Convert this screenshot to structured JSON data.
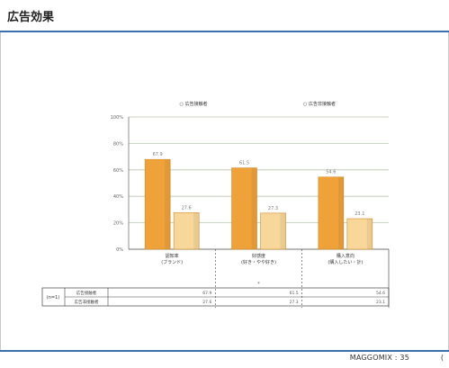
{
  "page": {
    "title": "広告効果",
    "footer": "MAGGOMIX : 35",
    "footer_edge": "("
  },
  "chart_data": {
    "type": "bar",
    "legend": [
      "広告接触者",
      "広告非接触者"
    ],
    "categories": [
      {
        "line1": "認知率",
        "line2": "(ブランド)"
      },
      {
        "line1": "好感度",
        "line2": "(好き・やや好き)"
      },
      {
        "line1": "購入意向",
        "line2": "(購入したい・計)"
      }
    ],
    "series": [
      {
        "name": "広告接触者",
        "color": "#f0a23a",
        "values": [
          67.9,
          61.5,
          54.6
        ]
      },
      {
        "name": "広告非接触者",
        "color": "#f8d79a",
        "values": [
          27.6,
          27.3,
          23.1
        ]
      }
    ],
    "ylim": [
      0,
      100
    ],
    "yticks": [
      "100%",
      "80%",
      "60%",
      "40%",
      "20%",
      "0%"
    ],
    "grid": true,
    "table": {
      "header": "(n=1)",
      "rows": [
        {
          "label": "広告接触者",
          "values": [
            "67.9",
            "61.5",
            "54.6"
          ]
        },
        {
          "label": "広告非接触者",
          "values": [
            "27.6",
            "27.3",
            "23.1"
          ]
        }
      ],
      "note": "*"
    }
  }
}
